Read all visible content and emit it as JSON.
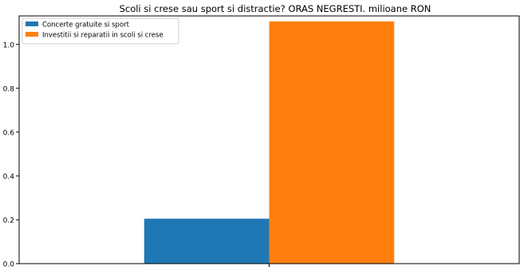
{
  "chart_data": {
    "type": "bar",
    "title": "Scoli si crese sau sport si distractie? ORAS NEGRESTI.  milioane RON",
    "xlabel": "",
    "ylabel": "",
    "categories": [
      "0"
    ],
    "series": [
      {
        "name": "Concerte gratuite si sport",
        "values": [
          0.205
        ],
        "color": "#1f77b4"
      },
      {
        "name": "Investitii si reparatii in scoli si crese",
        "values": [
          1.105
        ],
        "color": "#ff7f0e"
      }
    ],
    "ylim": [
      0,
      1.13
    ],
    "yticks": [
      "0.0",
      "0.2",
      "0.4",
      "0.6",
      "0.8",
      "1.0"
    ],
    "legend": "top-left",
    "grid": false
  }
}
